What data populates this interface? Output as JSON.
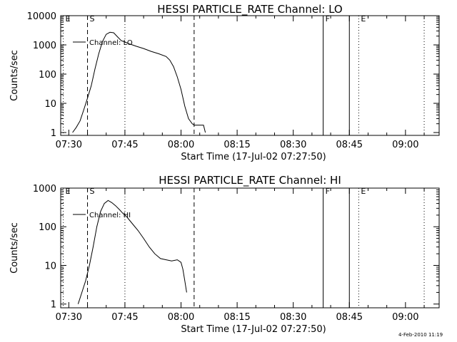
{
  "footer": {
    "timestamp": "4-Feb-2010 11:19"
  },
  "chart_data": [
    {
      "type": "line",
      "title": "HESSI PARTICLE_RATE Channel: LO",
      "xlabel": "Start Time (17-Jul-02 07:27:50)",
      "ylabel": "Counts/sec",
      "yscale": "log",
      "xlim": [
        "07:27:50",
        "09:09:00"
      ],
      "ylim": [
        0.8,
        10000
      ],
      "x_ticks": [
        "07:30",
        "07:45",
        "08:00",
        "08:15",
        "08:30",
        "08:45",
        "09:00"
      ],
      "y_ticks": [
        "1",
        "10",
        "100",
        "1000",
        "10000"
      ],
      "legend": {
        "label": "Channel: LO",
        "placement": "top-left"
      },
      "series": [
        {
          "name": "Channel: LO",
          "x": [
            "07:31:00",
            "07:32:00",
            "07:33:00",
            "07:34:00",
            "07:35:00",
            "07:36:00",
            "07:37:00",
            "07:38:00",
            "07:39:00",
            "07:40:00",
            "07:41:00",
            "07:42:00",
            "07:43:00",
            "07:44:00",
            "07:45:00",
            "07:46:00",
            "07:47:00",
            "07:48:00",
            "07:50:00",
            "07:52:00",
            "07:54:00",
            "07:56:00",
            "07:57:00",
            "07:58:00",
            "07:59:00",
            "08:00:00",
            "08:01:00",
            "08:02:00",
            "08:03:00",
            "08:03:30",
            "08:04:00",
            "08:05:00",
            "08:06:00",
            "08:06:30"
          ],
          "y": [
            1,
            1.5,
            2.5,
            6,
            15,
            40,
            150,
            500,
            1300,
            2300,
            2700,
            2600,
            1900,
            1400,
            1250,
            1100,
            1000,
            900,
            750,
            600,
            500,
            400,
            300,
            180,
            80,
            30,
            8,
            3,
            2,
            1.8,
            1.8,
            1.8,
            1.8,
            1
          ]
        }
      ],
      "markers": [
        {
          "label": "E",
          "time": "07:28:30",
          "style": "dotted"
        },
        {
          "label": "S",
          "time": "07:35:00",
          "style": "dashed"
        },
        {
          "label": "",
          "time": "07:45:00",
          "style": "dotted"
        },
        {
          "label": "",
          "time": "08:03:30",
          "style": "dashed"
        },
        {
          "label": "F",
          "time": "08:38:00",
          "style": "solid"
        },
        {
          "label": "",
          "time": "08:45:00",
          "style": "solid"
        },
        {
          "label": "E",
          "time": "08:47:30",
          "style": "dotted"
        },
        {
          "label": "",
          "time": "09:05:00",
          "style": "dotted"
        }
      ]
    },
    {
      "type": "line",
      "title": "HESSI PARTICLE_RATE Channel: HI",
      "xlabel": "Start Time (17-Jul-02 07:27:50)",
      "ylabel": "Counts/sec",
      "yscale": "log",
      "xlim": [
        "07:27:50",
        "09:09:00"
      ],
      "ylim": [
        0.8,
        1000
      ],
      "x_ticks": [
        "07:30",
        "07:45",
        "08:00",
        "08:15",
        "08:30",
        "08:45",
        "09:00"
      ],
      "y_ticks": [
        "1",
        "10",
        "100",
        "1000"
      ],
      "legend": {
        "label": "Channel: HI",
        "placement": "top-left"
      },
      "series": [
        {
          "name": "Channel: HI",
          "x": [
            "07:32:30",
            "07:33:30",
            "07:34:30",
            "07:35:30",
            "07:36:30",
            "07:37:30",
            "07:38:30",
            "07:39:30",
            "07:40:30",
            "07:41:30",
            "07:42:30",
            "07:43:30",
            "07:44:30",
            "07:45:30",
            "07:47:00",
            "07:48:30",
            "07:50:00",
            "07:51:30",
            "07:53:00",
            "07:54:30",
            "07:56:00",
            "07:57:30",
            "07:59:00",
            "08:00:00",
            "08:00:30",
            "08:01:00",
            "08:01:30"
          ],
          "y": [
            1,
            2,
            4,
            10,
            30,
            100,
            250,
            400,
            480,
            420,
            350,
            280,
            220,
            180,
            120,
            80,
            50,
            30,
            20,
            15,
            14,
            13,
            14,
            12,
            8,
            4,
            2
          ]
        }
      ],
      "markers": [
        {
          "label": "E",
          "time": "07:28:30",
          "style": "dotted"
        },
        {
          "label": "S",
          "time": "07:35:00",
          "style": "dashed"
        },
        {
          "label": "",
          "time": "07:45:00",
          "style": "dotted"
        },
        {
          "label": "",
          "time": "08:03:30",
          "style": "dashed"
        },
        {
          "label": "F",
          "time": "08:38:00",
          "style": "solid"
        },
        {
          "label": "",
          "time": "08:45:00",
          "style": "solid"
        },
        {
          "label": "E",
          "time": "08:47:30",
          "style": "dotted"
        },
        {
          "label": "",
          "time": "09:05:00",
          "style": "dotted"
        }
      ]
    }
  ]
}
